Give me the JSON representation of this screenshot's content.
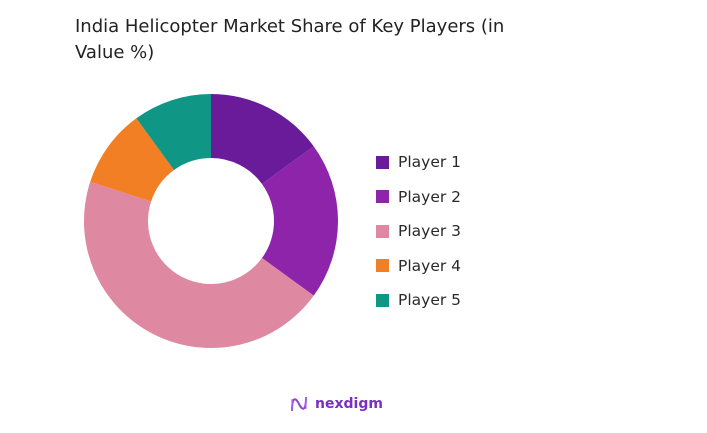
{
  "title": "India Helicopter Market Share of Key Players (in Value %)",
  "chart_data": {
    "type": "pie",
    "subtype": "donut",
    "title": "India Helicopter Market Share of Key Players (in Value %)",
    "categories": [
      "Player 1",
      "Player 2",
      "Player 3",
      "Player 4",
      "Player 5"
    ],
    "values": [
      15,
      20,
      45,
      10,
      10
    ],
    "colors": [
      "#6a1b9a",
      "#8e24aa",
      "#de88a1",
      "#f37f25",
      "#0f9685"
    ],
    "legend_position": "right",
    "start_angle_deg": 0,
    "direction": "clockwise"
  },
  "legend": [
    {
      "label": "Player 1",
      "color": "#6a1b9a"
    },
    {
      "label": "Player 2",
      "color": "#8e24aa"
    },
    {
      "label": "Player 3",
      "color": "#de88a1"
    },
    {
      "label": "Player 4",
      "color": "#f37f25"
    },
    {
      "label": "Player 5",
      "color": "#0f9685"
    }
  ],
  "logo": {
    "text": "nexdigm"
  }
}
